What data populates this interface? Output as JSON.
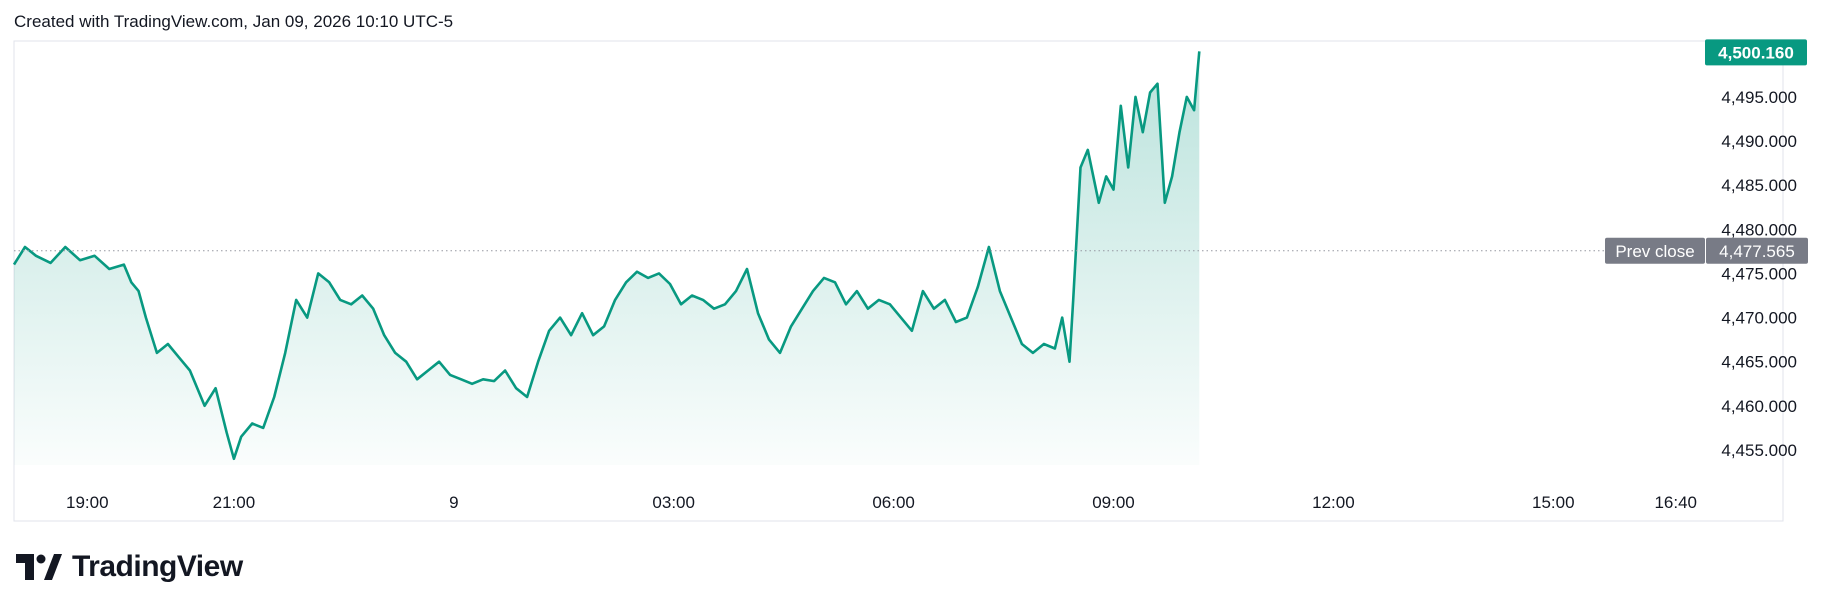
{
  "header": {
    "caption": "Created with TradingView.com, Jan 09, 2026 10:10 UTC-5"
  },
  "brand": {
    "name": "TradingView",
    "logo_icon": "tradingview-logo-icon"
  },
  "colors": {
    "line": "#089981",
    "last_price_bg": "#089981",
    "prev_close_bg": "#787b86",
    "axis_text": "#131722",
    "dotted": "#9598a1",
    "frame": "#e0e3eb"
  },
  "chart_data": {
    "type": "area",
    "x_tick_labels": [
      "19:00",
      "21:00",
      "9",
      "03:00",
      "06:00",
      "09:00",
      "12:00",
      "15:00",
      "16:40"
    ],
    "y_tick_labels": [
      "4,495.000",
      "4,490.000",
      "4,485.000",
      "4,480.000",
      "4,475.000",
      "4,470.000",
      "4,465.000",
      "4,460.000",
      "4,455.000"
    ],
    "ylim": [
      4452.5,
      4501
    ],
    "last_price_label": "4,500.160",
    "last_price": 4500.16,
    "prev_close_label": "Prev close",
    "prev_close_value_label": "4,477.565",
    "prev_close": 4477.565,
    "x_unit": "hours since 18:00",
    "x": [
      0.0,
      0.15,
      0.3,
      0.5,
      0.7,
      0.9,
      1.1,
      1.3,
      1.5,
      1.6,
      1.7,
      1.8,
      1.95,
      2.1,
      2.25,
      2.4,
      2.5,
      2.6,
      2.75,
      2.9,
      3.0,
      3.1,
      3.25,
      3.4,
      3.55,
      3.7,
      3.85,
      4.0,
      4.15,
      4.3,
      4.45,
      4.6,
      4.75,
      4.9,
      5.05,
      5.2,
      5.35,
      5.5,
      5.65,
      5.8,
      5.95,
      6.1,
      6.25,
      6.4,
      6.55,
      6.7,
      6.85,
      7.0,
      7.15,
      7.3,
      7.45,
      7.6,
      7.75,
      7.9,
      8.05,
      8.2,
      8.35,
      8.5,
      8.65,
      8.8,
      8.95,
      9.1,
      9.25,
      9.4,
      9.55,
      9.7,
      9.85,
      10.0,
      10.15,
      10.3,
      10.45,
      10.6,
      10.75,
      10.9,
      11.05,
      11.2,
      11.35,
      11.5,
      11.65,
      11.8,
      11.95,
      12.1,
      12.25,
      12.4,
      12.55,
      12.7,
      12.85,
      13.0,
      13.15,
      13.3,
      13.45,
      13.6,
      13.75,
      13.9,
      14.05,
      14.2,
      14.3,
      14.4,
      14.45,
      14.55,
      14.65,
      14.8,
      14.9,
      15.0,
      15.1,
      15.2,
      15.3,
      15.4,
      15.5,
      15.6,
      15.7,
      15.8,
      15.9,
      16.0,
      16.1,
      16.17
    ],
    "values": [
      4476.0,
      4478.0,
      4477.0,
      4476.2,
      4478.0,
      4476.5,
      4477.0,
      4475.5,
      4476.0,
      4474.0,
      4473.0,
      4470.0,
      4466.0,
      4467.0,
      4465.5,
      4464.0,
      4462.0,
      4460.0,
      4462.0,
      4457.0,
      4454.0,
      4456.5,
      4458.0,
      4457.5,
      4461.0,
      4466.0,
      4472.0,
      4470.0,
      4475.0,
      4474.0,
      4472.0,
      4471.5,
      4472.5,
      4471.0,
      4468.0,
      4466.0,
      4465.0,
      4463.0,
      4464.0,
      4465.0,
      4463.5,
      4463.0,
      4462.5,
      4463.0,
      4462.8,
      4464.0,
      4462.0,
      4461.0,
      4465.0,
      4468.5,
      4470.0,
      4468.0,
      4470.5,
      4468.0,
      4469.0,
      4472.0,
      4474.0,
      4475.2,
      4474.5,
      4475.0,
      4473.8,
      4471.5,
      4472.5,
      4472.0,
      4471.0,
      4471.5,
      4473.0,
      4475.5,
      4470.5,
      4467.5,
      4466.0,
      4469.0,
      4471.0,
      4473.0,
      4474.5,
      4474.0,
      4471.5,
      4473.0,
      4471.0,
      4472.0,
      4471.5,
      4470.0,
      4468.5,
      4473.0,
      4471.0,
      4472.0,
      4469.5,
      4470.0,
      4473.5,
      4478.0,
      4473.0,
      4470.0,
      4467.0,
      4466.0,
      4467.0,
      4466.5,
      4470.0,
      4465.0,
      4472.0,
      4487.0,
      4489.0,
      4483.0,
      4486.0,
      4484.5,
      4494.0,
      4487.0,
      4495.0,
      4491.0,
      4495.5,
      4496.5,
      4483.0,
      4486.0,
      4491.0,
      4495.0,
      4493.5,
      4500.16
    ]
  }
}
